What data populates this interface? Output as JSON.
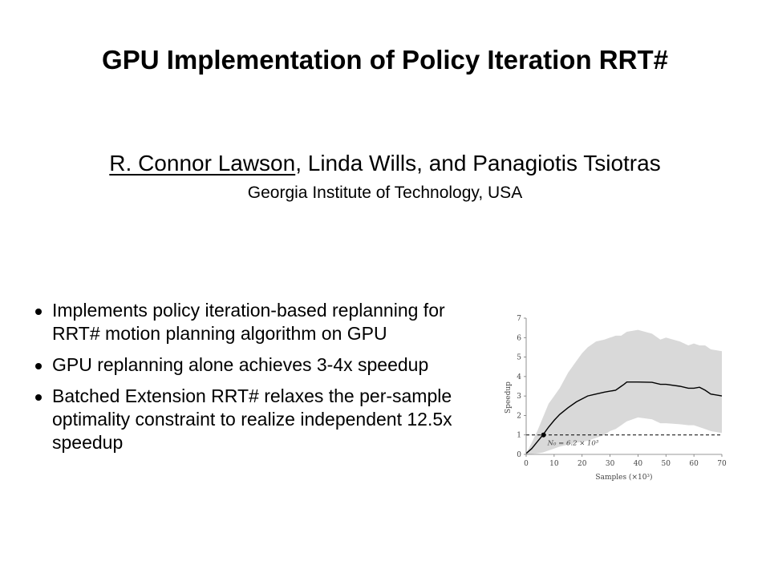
{
  "slide": {
    "title": "GPU Implementation of Policy Iteration RRT#",
    "presenter": "R. Connor Lawson",
    "coauthors": ", Linda Wills, and Panagiotis Tsiotras",
    "affiliation": "Georgia Institute of Technology, USA",
    "bullets": [
      "Implements policy iteration-based replanning for RRT# motion planning algorithm on GPU",
      "GPU replanning alone achieves 3-4x speedup",
      "Batched Extension RRT# relaxes the per-sample optimality constraint to realize independent 12.5x speedup"
    ]
  },
  "chart_data": {
    "type": "line",
    "xlabel": "Samples (×10³)",
    "ylabel": "Speedup",
    "xlim": [
      0,
      70
    ],
    "ylim": [
      0,
      7
    ],
    "xticks": [
      0,
      10,
      20,
      30,
      40,
      50,
      60,
      70
    ],
    "yticks": [
      0,
      1,
      2,
      3,
      4,
      5,
      6,
      7
    ],
    "grid": false,
    "reference_line": {
      "y": 1,
      "style": "dashed"
    },
    "marker": {
      "x": 6.2,
      "y": 1,
      "label": "N₀ = 6.2 × 10³"
    },
    "series": [
      {
        "x": [
          0,
          2,
          4,
          6,
          8,
          10,
          12,
          15,
          18,
          20,
          22,
          25,
          28,
          30,
          32,
          34,
          35,
          36,
          40,
          45,
          48,
          50,
          55,
          58,
          60,
          62,
          64,
          66,
          70
        ],
        "values": [
          0.05,
          0.3,
          0.65,
          1.0,
          1.4,
          1.75,
          2.05,
          2.4,
          2.7,
          2.85,
          3.0,
          3.1,
          3.2,
          3.25,
          3.3,
          3.5,
          3.6,
          3.72,
          3.72,
          3.7,
          3.6,
          3.6,
          3.5,
          3.4,
          3.4,
          3.45,
          3.3,
          3.1,
          3.0
        ],
        "band_upper": [
          0.05,
          0.6,
          1.2,
          1.9,
          2.6,
          3.0,
          3.4,
          4.2,
          4.8,
          5.2,
          5.5,
          5.8,
          5.9,
          6.0,
          6.1,
          6.1,
          6.2,
          6.3,
          6.4,
          6.2,
          5.9,
          6.0,
          5.8,
          5.6,
          5.7,
          5.6,
          5.6,
          5.4,
          5.3
        ],
        "band_lower": [
          0.0,
          0.02,
          0.05,
          0.1,
          0.2,
          0.3,
          0.4,
          0.5,
          0.6,
          0.65,
          0.7,
          0.85,
          1.0,
          1.2,
          1.3,
          1.5,
          1.6,
          1.7,
          1.9,
          1.8,
          1.6,
          1.6,
          1.55,
          1.5,
          1.5,
          1.4,
          1.3,
          1.2,
          1.1
        ],
        "line_color": "#000000",
        "band_color": "#d9d9d9"
      }
    ]
  }
}
